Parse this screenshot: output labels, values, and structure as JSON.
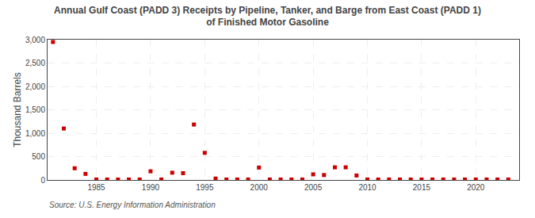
{
  "chart_data": {
    "type": "scatter",
    "title": "Annual Gulf Coast (PADD 3) Receipts by Pipeline, Tanker, and Barge from East Coast (PADD 1)\nof Finished Motor Gasoline",
    "ylabel": "Thousand Barrels",
    "source": "Source: U.S. Energy Information Administration",
    "color": "#cc0000",
    "marker": "square",
    "grid": true,
    "x": [
      1981,
      1982,
      1983,
      1984,
      1985,
      1986,
      1987,
      1988,
      1989,
      1990,
      1991,
      1992,
      1993,
      1994,
      1995,
      1996,
      1997,
      1998,
      1999,
      2000,
      2001,
      2002,
      2003,
      2004,
      2005,
      2006,
      2007,
      2008,
      2009,
      2010,
      2011,
      2012,
      2013,
      2014,
      2015,
      2016,
      2017,
      2018,
      2019,
      2020,
      2021,
      2022,
      2023
    ],
    "values": [
      2950,
      1100,
      250,
      130,
      10,
      10,
      10,
      10,
      10,
      185,
      10,
      155,
      145,
      1185,
      580,
      30,
      10,
      10,
      10,
      265,
      10,
      10,
      10,
      10,
      120,
      105,
      270,
      270,
      95,
      10,
      10,
      10,
      10,
      10,
      10,
      10,
      10,
      10,
      10,
      10,
      10,
      10,
      10
    ],
    "xlim": [
      1980.5,
      2024
    ],
    "xticks": [
      1985,
      1990,
      1995,
      2000,
      2005,
      2010,
      2015,
      2020
    ],
    "ylim": [
      0,
      3000
    ],
    "yticks": [
      0,
      500,
      {
        "value": 1000,
        "label": "1,000"
      },
      {
        "value": 1500,
        "label": "1,500"
      },
      {
        "value": 2000,
        "label": "2,000"
      },
      {
        "value": 2500,
        "label": "2,500"
      },
      {
        "value": 3000,
        "label": "3,000"
      }
    ]
  }
}
